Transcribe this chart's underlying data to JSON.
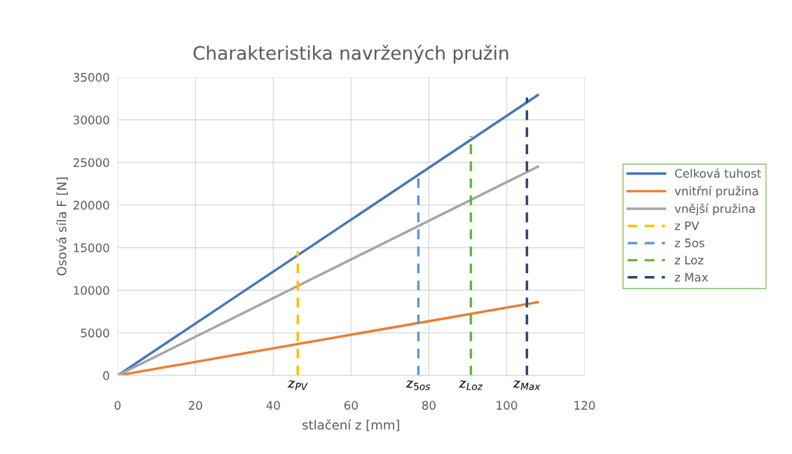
{
  "chart_data": {
    "type": "line",
    "title": "Charakteristika navržených pružin",
    "xlabel": "stlačení z [mm]",
    "ylabel": "Osová síla F [N]",
    "xlim": [
      0,
      120
    ],
    "xticks": [
      0,
      20,
      40,
      60,
      80,
      100,
      120
    ],
    "ylim": [
      0,
      35000
    ],
    "yticks": [
      0,
      5000,
      10000,
      15000,
      20000,
      25000,
      30000,
      35000
    ],
    "grid": true,
    "legend": "right",
    "marker": "none",
    "series": [
      {
        "name": "Celková tuhost",
        "color": "#4472c4",
        "x": [
          0,
          108
        ],
        "values": [
          0,
          32900
        ],
        "line_style": "solid"
      },
      {
        "name": "vnitřní pružina",
        "color": "#ed7d31",
        "x": [
          0,
          108
        ],
        "values": [
          0,
          8600
        ],
        "line_style": "solid"
      },
      {
        "name": "vnější pružina",
        "color": "#a5a5a5",
        "x": [
          0,
          108
        ],
        "values": [
          0,
          24500
        ],
        "line_style": "solid"
      },
      {
        "name": "z PV",
        "color": "#ffc000",
        "x": [
          46.3,
          46.3
        ],
        "values": [
          0,
          14600
        ],
        "line_style": "dashed"
      },
      {
        "name": "z 5os",
        "color": "#5b9bd5",
        "x": [
          77.3,
          77.3
        ],
        "values": [
          0,
          23800
        ],
        "line_style": "dashed"
      },
      {
        "name": "z Loz",
        "color": "#70ad47",
        "x": [
          90.8,
          90.8
        ],
        "values": [
          0,
          28100
        ],
        "line_style": "dashed"
      },
      {
        "name": "z Max",
        "color": "#264478",
        "x": [
          105.2,
          105.2
        ],
        "values": [
          0,
          32600
        ],
        "line_style": "dashed"
      }
    ],
    "annotations": [
      {
        "text": "z$_{PV}$",
        "x": 46.3,
        "y": 0
      },
      {
        "text": "z$_{5os}$",
        "x": 77.3,
        "y": 0
      },
      {
        "text": "z$_{Loz}$",
        "x": 90.8,
        "y": 0
      },
      {
        "text": "z$_{Max}$",
        "x": 105.2,
        "y": 0
      }
    ]
  }
}
